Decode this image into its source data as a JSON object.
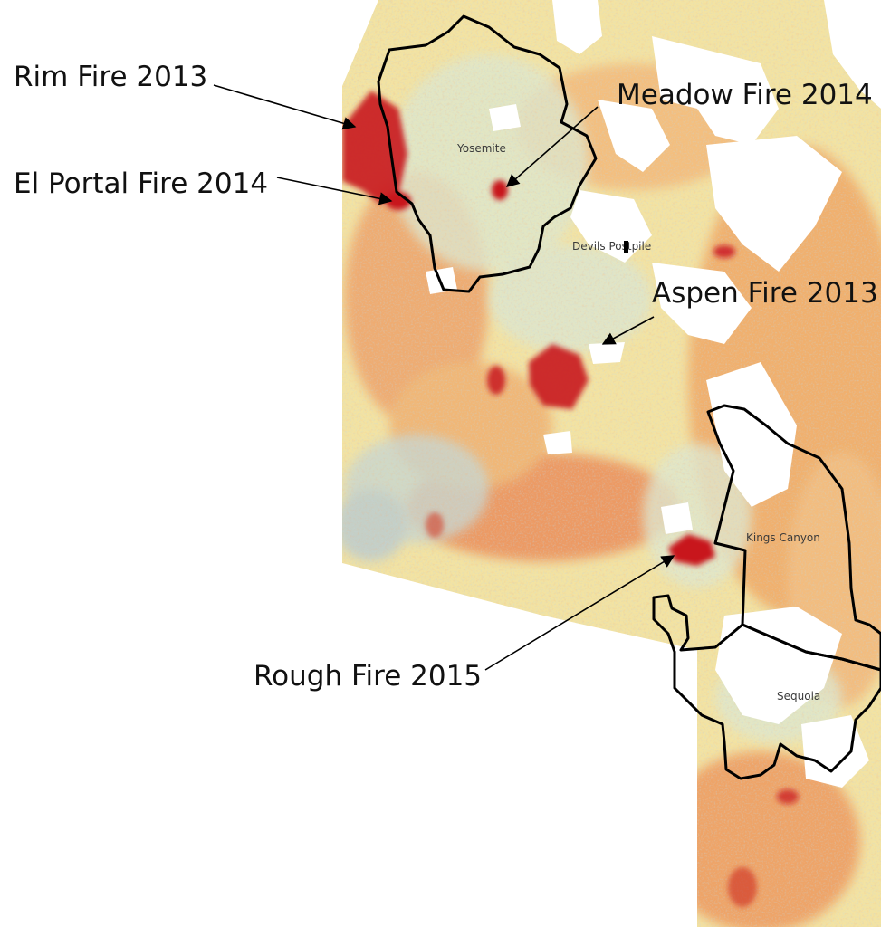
{
  "map": {
    "park_labels": {
      "yosemite": "Yosemite",
      "devils_postpile": "Devils Postpile",
      "kings_canyon": "Kings Canyon",
      "sequoia": "Sequoia"
    },
    "fire_labels": {
      "rim": "Rim Fire 2013",
      "meadow": "Meadow Fire 2014",
      "el_portal": "El Portal Fire 2014",
      "aspen": "Aspen Fire 2013",
      "rough": "Rough Fire 2015"
    },
    "colors": {
      "severe_burn": "#c8141e",
      "high_change": "#e8663a",
      "moderate_change": "#f2a45c",
      "low_change": "#f6dc94",
      "stable": "#e9eec8",
      "negative_change": "#a8c0cc",
      "park_boundary": "#000000"
    }
  }
}
